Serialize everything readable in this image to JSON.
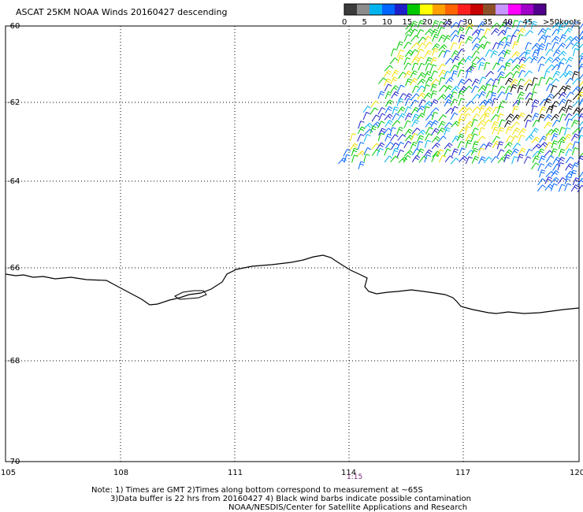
{
  "title": "ASCAT 25KM NOAA Winds 20160427 descending",
  "legend": {
    "colors": [
      "#3c3c3c",
      "#8c8c8c",
      "#00b4f0",
      "#0064ff",
      "#1e1ec8",
      "#00c800",
      "#ffff00",
      "#ffa000",
      "#ff6400",
      "#ff1e1e",
      "#c80000",
      "#8c5028",
      "#c896ff",
      "#ff00ff",
      "#a000c8",
      "#50008c"
    ],
    "labels": [
      "0",
      "5",
      "10",
      "15",
      "20",
      "25",
      "30",
      "35",
      "40",
      "45",
      ">50"
    ],
    "unit": "knots"
  },
  "axes": {
    "lat_labels": [
      "-60",
      "-62",
      "-64",
      "-66",
      "-68",
      "-70"
    ],
    "lon_labels": [
      "105",
      "108",
      "111",
      "114",
      "117",
      "120"
    ]
  },
  "time_label": "1:15",
  "notes": {
    "line1": "Note: 1) Times are GMT 2)Times along bottom correspond to measurement at ~65S",
    "line2": "3)Data buffer is 22 hrs from 20160427 4) Black wind barbs indicate possible contamination",
    "line3": "NOAA/NESDIS/Center for Satellite Applications and Research"
  },
  "barb_palette": {
    "yellow": "#f0e000",
    "green": "#00c800",
    "teal": "#00b4f0",
    "blue": "#0064ff",
    "navy": "#1e1ec8",
    "black": "#000000"
  }
}
